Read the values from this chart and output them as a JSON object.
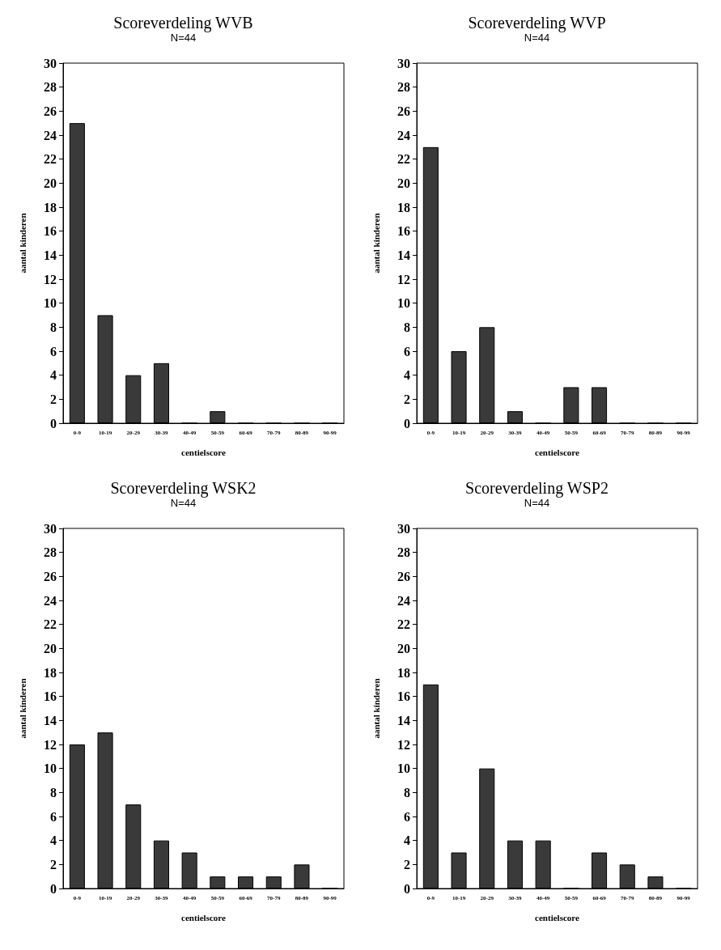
{
  "chart_data": [
    {
      "type": "bar",
      "title": "Scoreverdeling WVB",
      "subtitle": "N=44",
      "xlabel": "centielscore",
      "ylabel": "aantal kinderen",
      "categories": [
        "0-9",
        "10-19",
        "20-29",
        "30-39",
        "40-49",
        "50-59",
        "60-69",
        "70-79",
        "80-89",
        "90-99"
      ],
      "values": [
        25,
        9,
        4,
        5,
        0,
        1,
        0,
        0,
        0,
        0
      ],
      "color": "#3a3a3a",
      "ylim": [
        0,
        30
      ],
      "yticks": [
        0,
        2,
        4,
        6,
        8,
        10,
        12,
        14,
        16,
        18,
        20,
        22,
        24,
        26,
        28,
        30
      ],
      "grid": false
    },
    {
      "type": "bar",
      "title": "Scoreverdeling WVP",
      "subtitle": "N=44",
      "xlabel": "centielscore",
      "ylabel": "aantal kinderen",
      "categories": [
        "0-9",
        "10-19",
        "20-29",
        "30-39",
        "40-49",
        "50-59",
        "60-69",
        "70-79",
        "80-89",
        "90-99"
      ],
      "values": [
        23,
        6,
        8,
        1,
        0,
        3,
        3,
        0,
        0,
        0
      ],
      "color": "#3a3a3a",
      "ylim": [
        0,
        30
      ],
      "yticks": [
        0,
        2,
        4,
        6,
        8,
        10,
        12,
        14,
        16,
        18,
        20,
        22,
        24,
        26,
        28,
        30
      ],
      "grid": false
    },
    {
      "type": "bar",
      "title": "Scoreverdeling WSK2",
      "subtitle": "N=44",
      "xlabel": "centielscore",
      "ylabel": "aantal kinderen",
      "categories": [
        "0-9",
        "10-19",
        "20-29",
        "30-39",
        "40-49",
        "50-59",
        "60-69",
        "70-79",
        "80-89",
        "90-99"
      ],
      "values": [
        12,
        13,
        7,
        4,
        3,
        1,
        1,
        1,
        2,
        0
      ],
      "color": "#3a3a3a",
      "ylim": [
        0,
        30
      ],
      "yticks": [
        0,
        2,
        4,
        6,
        8,
        10,
        12,
        14,
        16,
        18,
        20,
        22,
        24,
        26,
        28,
        30
      ],
      "grid": false
    },
    {
      "type": "bar",
      "title": "Scoreverdeling WSP2",
      "subtitle": "N=44",
      "xlabel": "centielscore",
      "ylabel": "aantal kinderen",
      "categories": [
        "0-9",
        "10-19",
        "20-29",
        "30-39",
        "40-49",
        "50-59",
        "60-69",
        "70-79",
        "80-89",
        "90-99"
      ],
      "values": [
        17,
        3,
        10,
        4,
        4,
        0,
        3,
        2,
        1,
        0
      ],
      "color": "#3a3a3a",
      "ylim": [
        0,
        30
      ],
      "yticks": [
        0,
        2,
        4,
        6,
        8,
        10,
        12,
        14,
        16,
        18,
        20,
        22,
        24,
        26,
        28,
        30
      ],
      "grid": false
    }
  ]
}
